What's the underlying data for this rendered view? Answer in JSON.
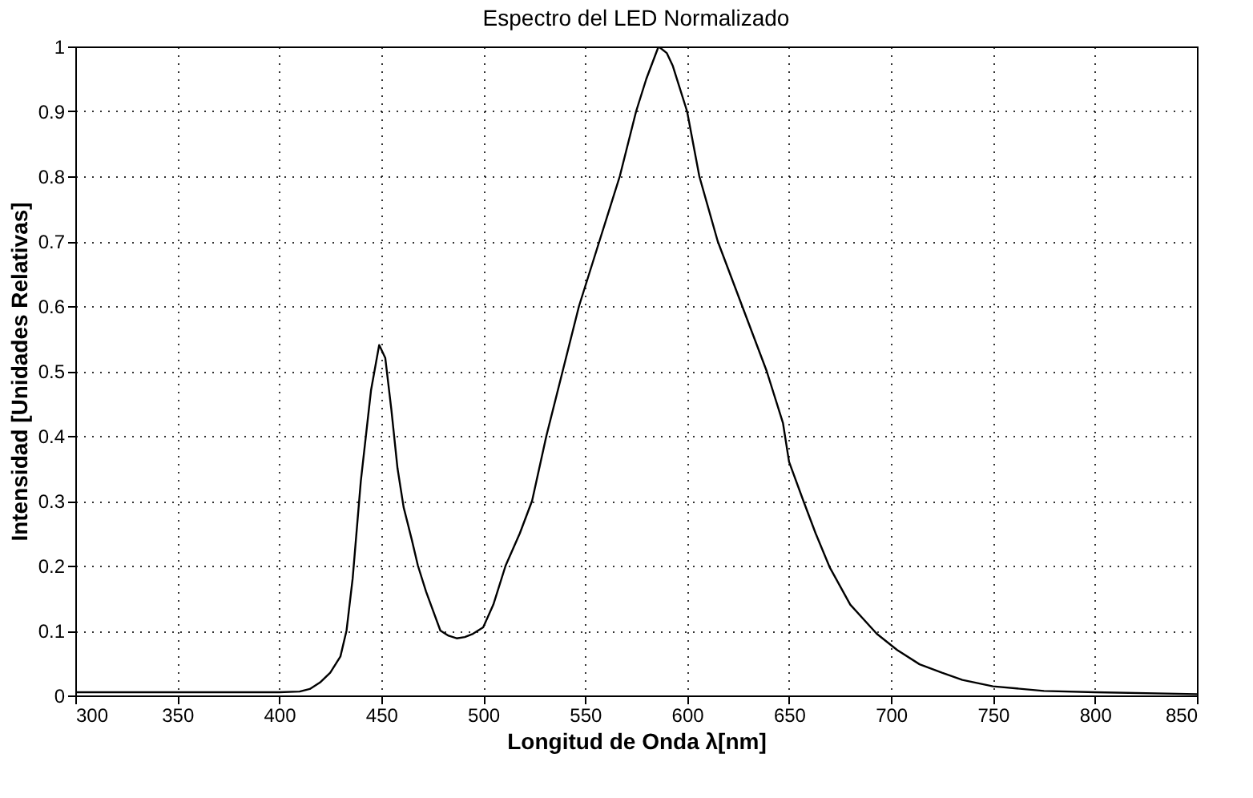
{
  "chart_data": {
    "type": "line",
    "title": "Espectro del LED Normalizado",
    "xlabel": "Longitud de Onda λ[nm]",
    "ylabel": "Intensidad [Unidades Relativas]",
    "xlim": [
      300,
      850
    ],
    "ylim": [
      0,
      1
    ],
    "xticks": [
      300,
      350,
      400,
      450,
      500,
      550,
      600,
      650,
      700,
      750,
      800,
      850
    ],
    "yticks": [
      0,
      0.1,
      0.2,
      0.3,
      0.4,
      0.5,
      0.6,
      0.7,
      0.8,
      0.9,
      1
    ],
    "grid": true,
    "line_style": "solid",
    "marker": "none",
    "series": [
      {
        "color": "#000000",
        "x": [
          300,
          350,
          400,
          410,
          415,
          420,
          425,
          430,
          433,
          436,
          440,
          445,
          449,
          452,
          455,
          458,
          461,
          465,
          468,
          472,
          479,
          483,
          487,
          491,
          495,
          500,
          505,
          511,
          518,
          524,
          531,
          539,
          547,
          557,
          567,
          575,
          580,
          586,
          590,
          593,
          596,
          600,
          606,
          615,
          627,
          639,
          647,
          650,
          657,
          663,
          670,
          680,
          693,
          703,
          714,
          725,
          735,
          750,
          775,
          800,
          850
        ],
        "values": [
          0.005,
          0.005,
          0.005,
          0.006,
          0.01,
          0.02,
          0.035,
          0.06,
          0.1,
          0.18,
          0.33,
          0.47,
          0.54,
          0.52,
          0.44,
          0.35,
          0.29,
          0.24,
          0.2,
          0.16,
          0.1,
          0.092,
          0.088,
          0.09,
          0.095,
          0.105,
          0.14,
          0.2,
          0.25,
          0.3,
          0.4,
          0.5,
          0.6,
          0.7,
          0.8,
          0.9,
          0.95,
          1.0,
          0.99,
          0.97,
          0.94,
          0.9,
          0.8,
          0.7,
          0.6,
          0.5,
          0.42,
          0.36,
          0.3,
          0.25,
          0.197,
          0.14,
          0.095,
          0.07,
          0.048,
          0.035,
          0.024,
          0.014,
          0.007,
          0.005,
          0.002
        ]
      }
    ]
  }
}
